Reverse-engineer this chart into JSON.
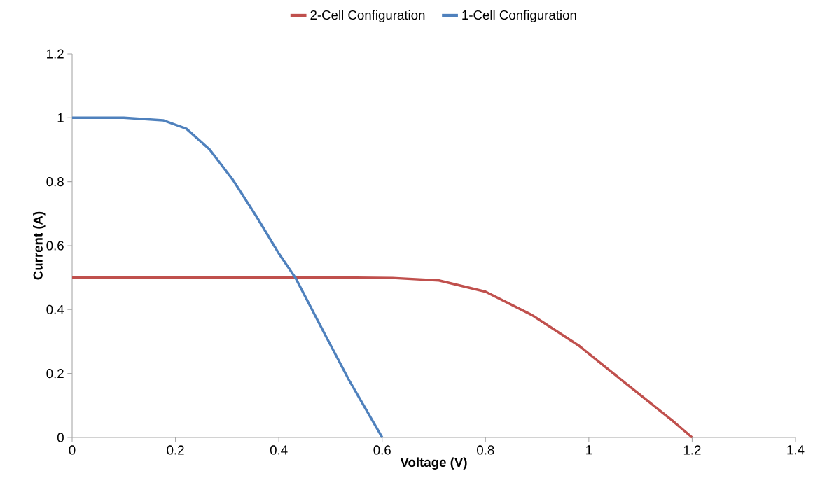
{
  "chart_data": {
    "type": "line",
    "xlabel": "Voltage (V)",
    "ylabel": "Current (A)",
    "legend": "top",
    "line_style": "solid",
    "xlim": [
      0,
      1.4
    ],
    "ylim": [
      0,
      1.2
    ],
    "xticks": [
      0,
      0.2,
      0.4,
      0.6,
      0.8,
      1,
      1.2,
      1.4
    ],
    "yticks": [
      0,
      0.2,
      0.4,
      0.6,
      0.8,
      1,
      1.2
    ],
    "series": [
      {
        "name": "2-Cell Configuration",
        "color": "#c0504d",
        "x": [
          0,
          0.2,
          0.4,
          0.5,
          0.62,
          0.71,
          0.8,
          0.89,
          0.98,
          1.07,
          1.16,
          1.2
        ],
        "values": [
          0.5,
          0.5,
          0.5,
          0.5,
          0.499,
          0.491,
          0.456,
          0.383,
          0.288,
          0.171,
          0.055,
          0
        ]
      },
      {
        "name": "1-Cell Configuration",
        "color": "#4f81bd",
        "x": [
          0,
          0.1,
          0.176,
          0.221,
          0.266,
          0.311,
          0.356,
          0.401,
          0.432,
          0.491,
          0.536,
          0.6
        ],
        "values": [
          1,
          1,
          0.992,
          0.966,
          0.901,
          0.806,
          0.693,
          0.573,
          0.5,
          0.317,
          0.179,
          0
        ]
      }
    ]
  }
}
